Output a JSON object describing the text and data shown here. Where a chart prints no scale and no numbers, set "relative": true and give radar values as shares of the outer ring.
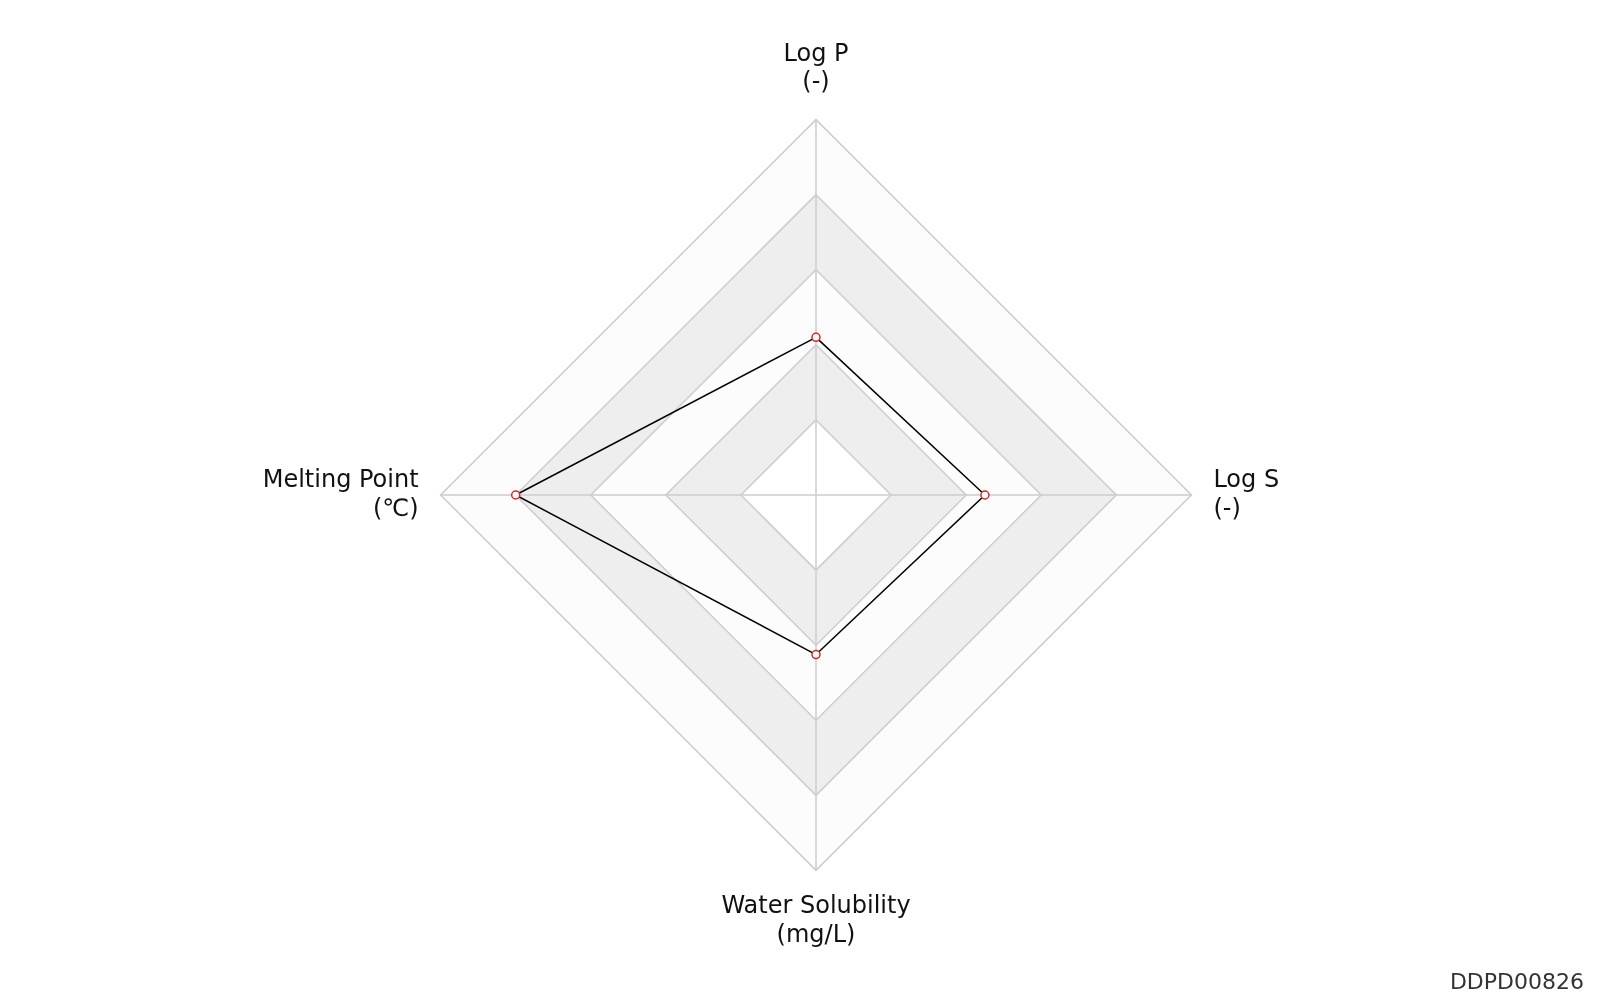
{
  "chart_data": {
    "type": "radar",
    "relative": true,
    "categories": [
      "Log P\n(-)",
      "Log S\n(-)",
      "Water Solubility\n(mg/L)",
      "Melting Point\n(℃)"
    ],
    "series": [
      {
        "color": "#000000",
        "values": [
          0.42,
          0.45,
          0.425,
          0.8
        ]
      }
    ],
    "marker": "circle",
    "grid": true,
    "legend": false,
    "annotations": [
      "DDPD00826"
    ]
  }
}
